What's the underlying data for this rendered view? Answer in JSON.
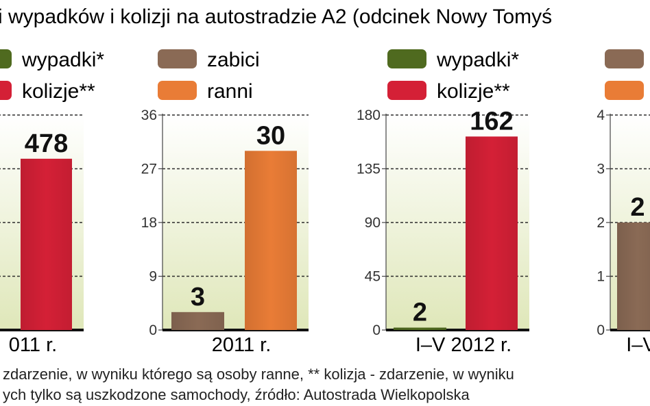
{
  "title": "i wypadków i kolizji na autostradzie A2 (odcinek Nowy Tomyś",
  "footnote": {
    "line1": "zdarzenie, w wyniku którego są osoby ranne, ** kolizja - zdarzenie, w wyniku",
    "line2": "ych tylko są uszkodzone samochody, źródło: Autostrada Wielkopolska"
  },
  "colors": {
    "wypadki": "#4f6a1f",
    "kolizje": "#d42036",
    "zabici": "#8a6a55",
    "ranni": "#e97c36",
    "panel_top": "#ffffff",
    "panel_bottom": "#dfe7b9"
  },
  "chart_data": [
    {
      "type": "bar",
      "xlabel": "011 r.",
      "legend": [
        {
          "label": "wypadki*",
          "color": "#4f6a1f"
        },
        {
          "label": "kolizje**",
          "color": "#d42036"
        }
      ],
      "series": [
        {
          "name": "kolizje**",
          "value": 478,
          "label": "478",
          "color": "#d42036"
        }
      ],
      "ylim": [
        0,
        600
      ],
      "yticks": [],
      "grid": true
    },
    {
      "type": "bar",
      "xlabel": "2011 r.",
      "legend": [
        {
          "label": "zabici",
          "color": "#8a6a55"
        },
        {
          "label": "ranni",
          "color": "#e97c36"
        }
      ],
      "series": [
        {
          "name": "zabici",
          "value": 3,
          "label": "3",
          "color": "#8a6a55"
        },
        {
          "name": "ranni",
          "value": 30,
          "label": "30",
          "color": "#e97c36"
        }
      ],
      "ylim": [
        0,
        36
      ],
      "yticks": [
        "0",
        "9",
        "18",
        "27",
        "36"
      ],
      "grid": true
    },
    {
      "type": "bar",
      "xlabel": "I–V 2012 r.",
      "legend": [
        {
          "label": "wypadki*",
          "color": "#4f6a1f"
        },
        {
          "label": "kolizje**",
          "color": "#d42036"
        }
      ],
      "series": [
        {
          "name": "wypadki*",
          "value": 2,
          "label": "2",
          "color": "#4f6a1f"
        },
        {
          "name": "kolizje**",
          "value": 162,
          "label": "162",
          "color": "#d42036"
        }
      ],
      "ylim": [
        0,
        180
      ],
      "yticks": [
        "0",
        "45",
        "90",
        "135",
        "180"
      ],
      "grid": true
    },
    {
      "type": "bar",
      "xlabel": "I–V",
      "legend": [
        {
          "label": "",
          "color": "#8a6a55"
        },
        {
          "label": "",
          "color": "#e97c36"
        }
      ],
      "series": [
        {
          "name": "zabici",
          "value": 2,
          "label": "2",
          "color": "#8a6a55"
        }
      ],
      "ylim": [
        0,
        4
      ],
      "yticks": [
        "0",
        "1",
        "2",
        "3",
        "4"
      ],
      "grid": true
    }
  ]
}
